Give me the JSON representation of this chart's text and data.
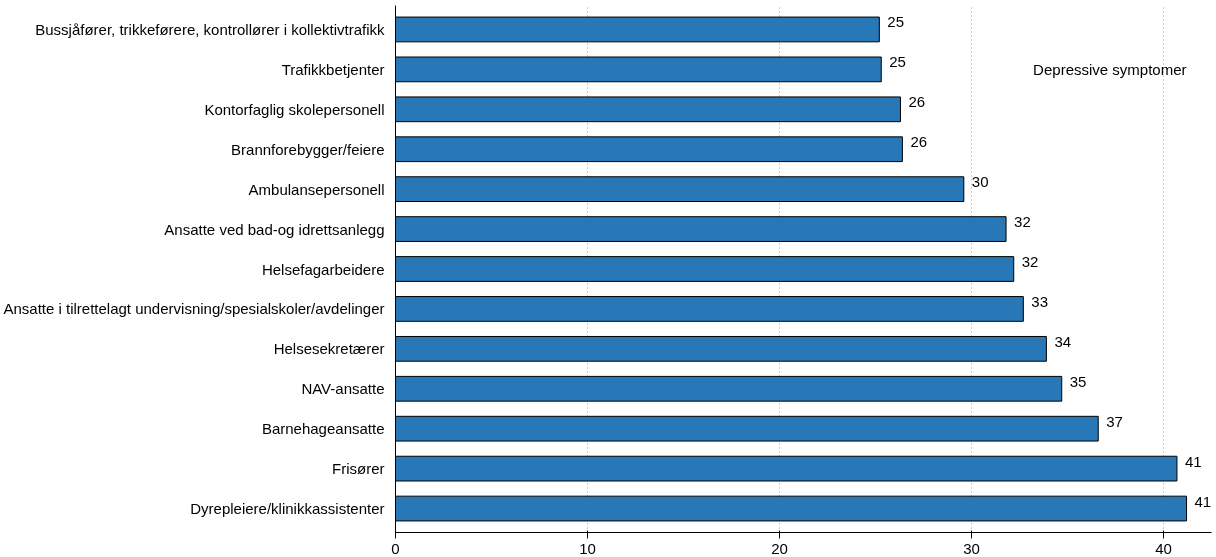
{
  "chart_data": {
    "type": "bar",
    "orientation": "horizontal",
    "categories": [
      "Bussjåfører, trikkeførere, kontrollører i kollektivtrafikk",
      "Trafikkbetjenter",
      "Kontorfaglig skolepersonell",
      "Brannforebygger/feiere",
      "Ambulansepersonell",
      "Ansatte ved bad-og idrettsanlegg",
      "Helsefagarbeidere",
      "Ansatte i tilrettelagt undervisning/spesialskoler/avdelinger",
      "Helsesekretærer",
      "NAV-ansatte",
      "Barnehageansatte",
      "Frisører",
      "Dyrepleiere/klinikkassistenter"
    ],
    "values": [
      25.2,
      25.3,
      26.3,
      26.4,
      29.6,
      31.8,
      32.2,
      32.7,
      33.9,
      34.7,
      36.6,
      40.7,
      41.2
    ],
    "value_labels": [
      "25",
      "25",
      "26",
      "26",
      "30",
      "32",
      "32",
      "33",
      "34",
      "35",
      "37",
      "41",
      "41"
    ],
    "color": "#2878b8",
    "xlim": [
      0,
      42.5
    ],
    "xticks": [
      0,
      10,
      20,
      30,
      40
    ],
    "grid": "x",
    "annotations": [
      "Depressive symptomer"
    ]
  }
}
